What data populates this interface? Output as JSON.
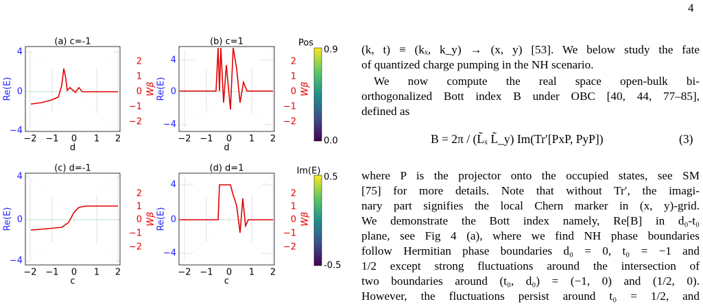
{
  "page_number": "4",
  "figure": {
    "panels": [
      {
        "title": "(a) c=-1",
        "xlabel": "d",
        "ylabel": "Re(E)",
        "y2label": "Wβ",
        "xticks": [
          "−2",
          "−1",
          "0",
          "1",
          "2"
        ],
        "yticks": [
          "4",
          "0",
          "−4"
        ],
        "y2ticks": [
          "2",
          "1",
          "0",
          "−1",
          "−2"
        ]
      },
      {
        "title": "(b) c=1",
        "xlabel": "d",
        "ylabel": "Re(E)",
        "y2label": "Wβ",
        "xticks": [
          "−2",
          "−1",
          "0",
          "1",
          "2"
        ],
        "yticks": [
          "4",
          "0",
          "−4"
        ],
        "y2ticks": [
          "2",
          "1",
          "0",
          "−1",
          "−2"
        ]
      },
      {
        "title": "(c) d=-1",
        "xlabel": "c",
        "ylabel": "Re(E)",
        "y2label": "Wβ",
        "xticks": [
          "−2",
          "−1",
          "0",
          "1",
          "2"
        ],
        "yticks": [
          "4",
          "0",
          "−4"
        ],
        "y2ticks": [
          "2",
          "1",
          "0",
          "−1",
          "−2"
        ]
      },
      {
        "title": "(d) d=1",
        "xlabel": "c",
        "ylabel": "Re(E)",
        "y2label": "Wβ",
        "xticks": [
          "−2",
          "−1",
          "0",
          "1",
          "2"
        ],
        "yticks": [
          "4",
          "0",
          "−4"
        ],
        "y2ticks": [
          "2",
          "1",
          "0",
          "−1",
          "−2"
        ]
      }
    ],
    "colorbars": [
      {
        "label": "Pos",
        "ticks": [
          "0.9",
          "0.0"
        ]
      },
      {
        "label": "Im(E)",
        "ticks": [
          "0.5",
          "-0.5"
        ]
      }
    ]
  },
  "text": {
    "lines": [
      "(k, t) ≡ (kₓ, k_y) → (x, y) [53]. We below study the fate",
      "of quantized charge pumping in the NH scenario.",
      "We now compute the real space open-bulk bi-",
      "orthogonalized Bott index B under OBC [40, 44, 77–85],",
      "defined as"
    ],
    "equation": "B = 2π / (L̃ₓ L̃_y) Im(Tr′[PxP, PyP])",
    "equation_number": "(3)",
    "lines2": [
      "where P is the projector onto the occupied states, see SM",
      "[75] for more details. Note that without Tr′, the imagi-",
      "nary part signifies the local Chern marker in (x, y)-grid.",
      "We demonstrate the Bott index namely, Re[B] in d₀-t₀",
      "plane, see Fig 4 (a), where we find NH phase boundaries",
      "follow Hermitian phase boundaries d₀ = 0, t₀ = −1 and",
      "1/2 except strong fluctuations around the intersection of",
      "two boundaries around (t₀, d₀) = (−1, 0) and (1/2, 0).",
      "However, the fluctuations persist around t₀ = 1/2, and"
    ]
  }
}
